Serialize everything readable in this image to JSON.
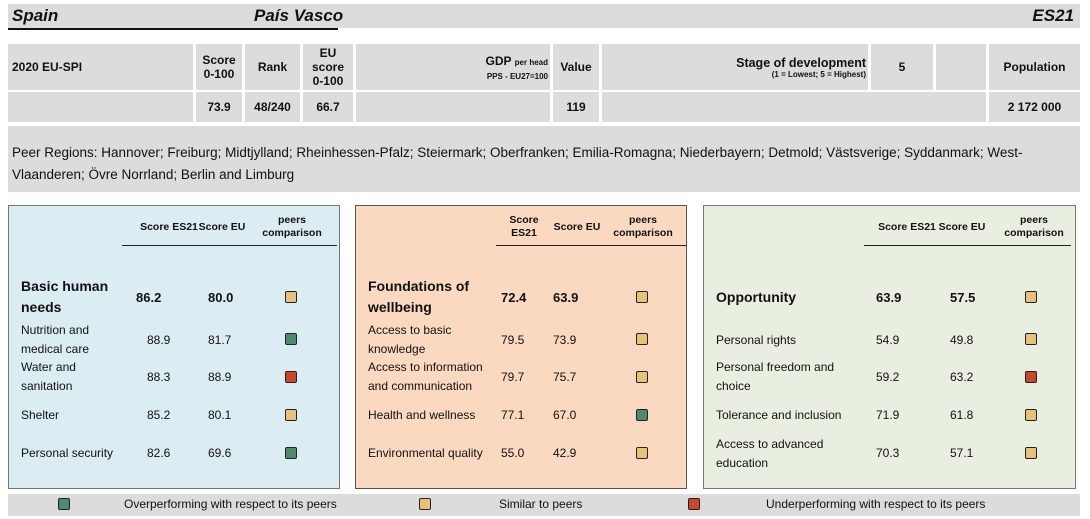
{
  "header": {
    "country": "Spain",
    "region": "País Vasco",
    "code": "ES21"
  },
  "info": {
    "index_label": "2020 EU-SPI",
    "score_hdr": [
      "Score",
      "0-100"
    ],
    "rank_hdr": "Rank",
    "eu_score_hdr": [
      "EU score",
      "0-100"
    ],
    "gdp_hdr": "GDP",
    "gdp_hdr_small": "per head",
    "gdp_sub": "PPS - EU27=100",
    "value_hdr": "Value",
    "stage_hdr": "Stage of development",
    "stage_sub": "(1 = Lowest; 5 = Highest)",
    "stage_value": "5",
    "population_hdr": "Population",
    "score": "73.9",
    "rank": "48/240",
    "eu_score": "66.7",
    "gdp_value": "119",
    "population": "2 172 000"
  },
  "peers_text": "Peer Regions: Hannover; Freiburg; Midtjylland; Rheinhessen-Pfalz; Steiermark; Oberfranken; Emilia-Romagna; Niederbayern; Detmold; Västsverige; Syddanmark; West-Vlaanderen; Övre Norrland; Berlin and Limburg",
  "colors": {
    "over": "#4e8a6c",
    "similar": "#e8c27a",
    "under": "#c9472b",
    "panel1": "#dcecf3",
    "panel2": "#fbd9c0",
    "panel3": "#e8efe0"
  },
  "panels": [
    {
      "hdr_score": "Score ES21",
      "hdr_eu": "Score EU",
      "hdr_peers": [
        "peers",
        "comparison"
      ],
      "title": [
        "Basic human",
        "needs"
      ],
      "title_score": "86.2",
      "title_eu": "80.0",
      "title_status": "similar",
      "rows": [
        {
          "label": [
            "Nutrition and",
            "medical care"
          ],
          "score": "88.9",
          "eu": "81.7",
          "status": "over"
        },
        {
          "label": [
            "Water and",
            "sanitation"
          ],
          "score": "88.3",
          "eu": "88.9",
          "status": "under"
        },
        {
          "label": [
            "Shelter"
          ],
          "score": "85.2",
          "eu": "80.1",
          "status": "similar"
        },
        {
          "label": [
            "Personal security"
          ],
          "score": "82.6",
          "eu": "69.6",
          "status": "over"
        }
      ]
    },
    {
      "hdr_score": [
        "Score",
        "ES21"
      ],
      "hdr_eu": "Score EU",
      "hdr_peers": [
        "peers",
        "comparison"
      ],
      "title": [
        "Foundations of",
        "wellbeing"
      ],
      "title_score": "72.4",
      "title_eu": "63.9",
      "title_status": "similar",
      "rows": [
        {
          "label": [
            "Access to basic",
            "knowledge"
          ],
          "score": "79.5",
          "eu": "73.9",
          "status": "similar"
        },
        {
          "label": [
            "Access to information",
            "and communication"
          ],
          "score": "79.7",
          "eu": "75.7",
          "status": "similar"
        },
        {
          "label": [
            "Health and wellness"
          ],
          "score": "77.1",
          "eu": "67.0",
          "status": "over"
        },
        {
          "label": [
            "Environmental quality"
          ],
          "score": "55.0",
          "eu": "42.9",
          "status": "similar"
        }
      ]
    },
    {
      "hdr_score": "Score ES21",
      "hdr_eu": "Score EU",
      "hdr_peers": [
        "peers",
        "comparison"
      ],
      "title": [
        "Opportunity"
      ],
      "title_score": "63.9",
      "title_eu": "57.5",
      "title_status": "similar",
      "rows": [
        {
          "label": [
            "Personal rights"
          ],
          "score": "54.9",
          "eu": "49.8",
          "status": "similar"
        },
        {
          "label": [
            "Personal freedom and",
            "choice"
          ],
          "score": "59.2",
          "eu": "63.2",
          "status": "under"
        },
        {
          "label": [
            "Tolerance and inclusion"
          ],
          "score": "71.9",
          "eu": "61.8",
          "status": "similar"
        },
        {
          "label": [
            "Access to advanced",
            "education"
          ],
          "score": "70.3",
          "eu": "57.1",
          "status": "similar"
        }
      ]
    }
  ],
  "legend": {
    "over": "Overperforming with respect to its peers",
    "similar": "Similar to peers",
    "under": "Underperforming with respect to its peers"
  }
}
